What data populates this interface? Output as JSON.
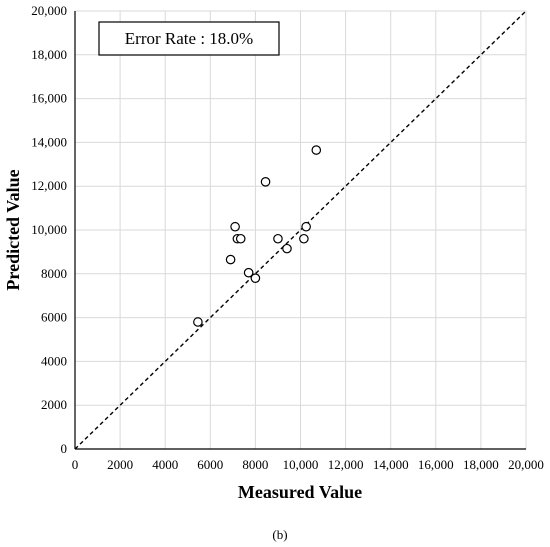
{
  "chart_data": {
    "type": "scatter",
    "title": "",
    "xlabel": "Measured Value",
    "ylabel": "Predicted Value",
    "xlim": [
      0,
      20000
    ],
    "ylim": [
      0,
      20000
    ],
    "xticks": [
      0,
      2000,
      4000,
      6000,
      8000,
      10000,
      12000,
      14000,
      16000,
      18000,
      20000
    ],
    "xtick_labels": [
      "0",
      "2000",
      "4000",
      "6000",
      "8000",
      "10,000",
      "12,000",
      "14,000",
      "16,000",
      "18,000",
      "20,000"
    ],
    "yticks": [
      0,
      2000,
      4000,
      6000,
      8000,
      10000,
      12000,
      14000,
      16000,
      18000,
      20000
    ],
    "ytick_labels": [
      "0",
      "2000",
      "4000",
      "6000",
      "8000",
      "10,000",
      "12,000",
      "14,000",
      "16,000",
      "18,000",
      "20,000"
    ],
    "grid": "vertical and horizontal gridlines",
    "marker": "open circle",
    "reference_line": {
      "style": "dashed",
      "from": [
        0,
        0
      ],
      "to": [
        20000,
        20000
      ]
    },
    "annotation": "Error Rate : 18.0%",
    "caption": "(b)",
    "points": [
      {
        "x": 5450,
        "y": 5800
      },
      {
        "x": 6900,
        "y": 8650
      },
      {
        "x": 7100,
        "y": 10150
      },
      {
        "x": 7200,
        "y": 9600
      },
      {
        "x": 7350,
        "y": 9600
      },
      {
        "x": 7700,
        "y": 8050
      },
      {
        "x": 8000,
        "y": 7800
      },
      {
        "x": 8450,
        "y": 12200
      },
      {
        "x": 9000,
        "y": 9600
      },
      {
        "x": 9400,
        "y": 9150
      },
      {
        "x": 10150,
        "y": 9600
      },
      {
        "x": 10250,
        "y": 10150
      },
      {
        "x": 10700,
        "y": 13650
      }
    ]
  }
}
